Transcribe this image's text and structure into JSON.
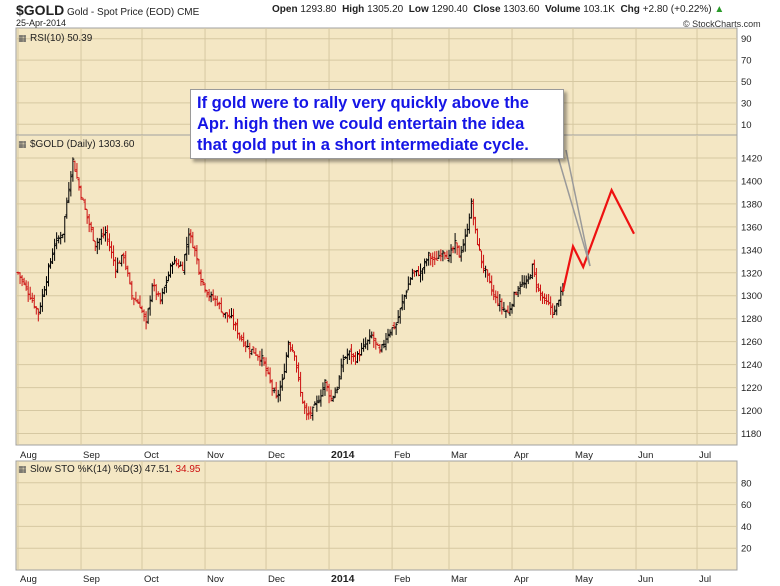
{
  "header": {
    "symbol": "$GOLD",
    "name": "Gold - Spot Price (EOD)",
    "exchange": "CME",
    "date": "25-Apr-2014",
    "open_label": "Open",
    "open": "1293.80",
    "high_label": "High",
    "high": "1305.20",
    "low_label": "Low",
    "low": "1290.40",
    "close_label": "Close",
    "close": "1303.60",
    "volume_label": "Volume",
    "volume": "103.1K",
    "chg_label": "Chg",
    "chg": "+2.80 (+0.22%)",
    "watermark": "© StockCharts.com"
  },
  "annotation": {
    "lines": [
      "If gold were to rally very quickly above the",
      "Apr. high then we could entertain the idea",
      "that gold put in a short intermediate cycle."
    ]
  },
  "colors": {
    "panel_bg": "#f4e7c4",
    "up": "#000000",
    "down": "#cc1111",
    "projection": "#ee1111",
    "callout_text": "#1515e6"
  },
  "chart_data": [
    {
      "type": "line",
      "title": "RSI(10) 50.39",
      "ylim": [
        0,
        100
      ],
      "yticks": [
        10,
        30,
        50,
        70,
        90
      ],
      "series": [
        {
          "name": "RSI(10)",
          "values": []
        }
      ]
    },
    {
      "type": "candlestick",
      "title": "$GOLD (Daily) 1303.60",
      "ylim": [
        1170,
        1440
      ],
      "yticks": [
        1180,
        1200,
        1220,
        1240,
        1260,
        1280,
        1300,
        1320,
        1340,
        1360,
        1380,
        1400,
        1420
      ],
      "x_axis_labels": [
        "Aug",
        "Sep",
        "Oct",
        "Nov",
        "Dec",
        "2014",
        "Feb",
        "Mar",
        "Apr",
        "May",
        "Jun",
        "Jul"
      ],
      "x_axis_label_days": [
        0,
        31,
        61,
        92,
        122,
        153,
        184,
        212,
        243,
        273,
        304,
        334
      ],
      "price_path": [
        [
          0,
          1320
        ],
        [
          6,
          1300
        ],
        [
          10,
          1285
        ],
        [
          14,
          1315
        ],
        [
          18,
          1345
        ],
        [
          22,
          1355
        ],
        [
          25,
          1395
        ],
        [
          27,
          1418
        ],
        [
          30,
          1395
        ],
        [
          34,
          1368
        ],
        [
          38,
          1345
        ],
        [
          43,
          1355
        ],
        [
          48,
          1325
        ],
        [
          52,
          1335
        ],
        [
          56,
          1300
        ],
        [
          60,
          1292
        ],
        [
          63,
          1275
        ],
        [
          66,
          1310
        ],
        [
          70,
          1295
        ],
        [
          76,
          1330
        ],
        [
          81,
          1325
        ],
        [
          84,
          1355
        ],
        [
          87,
          1340
        ],
        [
          90,
          1315
        ],
        [
          94,
          1300
        ],
        [
          98,
          1295
        ],
        [
          101,
          1285
        ],
        [
          105,
          1280
        ],
        [
          109,
          1265
        ],
        [
          113,
          1255
        ],
        [
          117,
          1250
        ],
        [
          120,
          1245
        ],
        [
          124,
          1225
        ],
        [
          127,
          1210
        ],
        [
          130,
          1225
        ],
        [
          133,
          1260
        ],
        [
          136,
          1250
        ],
        [
          139,
          1215
        ],
        [
          142,
          1195
        ],
        [
          145,
          1200
        ],
        [
          148,
          1210
        ],
        [
          151,
          1225
        ],
        [
          154,
          1210
        ],
        [
          157,
          1220
        ],
        [
          160,
          1245
        ],
        [
          163,
          1250
        ],
        [
          166,
          1245
        ],
        [
          170,
          1255
        ],
        [
          174,
          1265
        ],
        [
          178,
          1250
        ],
        [
          182,
          1268
        ],
        [
          186,
          1275
        ],
        [
          190,
          1300
        ],
        [
          194,
          1320
        ],
        [
          198,
          1320
        ],
        [
          202,
          1335
        ],
        [
          205,
          1330
        ],
        [
          209,
          1340
        ],
        [
          212,
          1333
        ],
        [
          215,
          1345
        ],
        [
          217,
          1335
        ],
        [
          220,
          1350
        ],
        [
          223,
          1380
        ],
        [
          225,
          1355
        ],
        [
          228,
          1330
        ],
        [
          231,
          1315
        ],
        [
          234,
          1300
        ],
        [
          238,
          1290
        ],
        [
          241,
          1285
        ],
        [
          244,
          1300
        ],
        [
          247,
          1310
        ],
        [
          250,
          1310
        ],
        [
          253,
          1325
        ],
        [
          256,
          1305
        ],
        [
          259,
          1295
        ],
        [
          262,
          1290
        ],
        [
          264,
          1285
        ],
        [
          266,
          1298
        ],
        [
          268,
          1303.6
        ]
      ],
      "projection": {
        "name": "projection",
        "x_days": [
          268,
          273,
          278,
          292,
          303
        ],
        "values": [
          1303.6,
          1343,
          1325,
          1392,
          1354
        ]
      }
    },
    {
      "type": "line",
      "title_prefix": "Slow STO %K(14) %D(3)",
      "k_value": "47.51",
      "d_value": "34.95",
      "ylim": [
        0,
        100
      ],
      "yticks": [
        20,
        40,
        60,
        80
      ],
      "series": [
        {
          "name": "%K(14)",
          "values": []
        },
        {
          "name": "%D(3)",
          "values": []
        }
      ]
    }
  ]
}
